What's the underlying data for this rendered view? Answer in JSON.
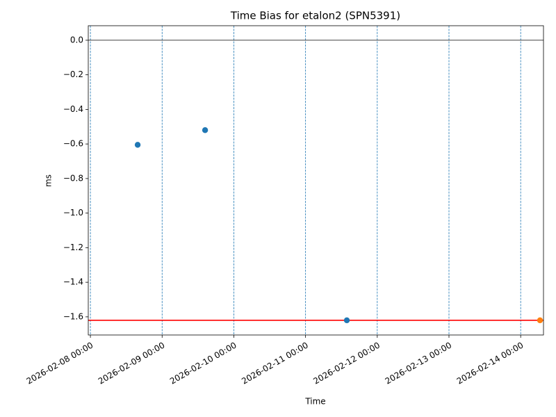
{
  "chart_data": {
    "type": "scatter",
    "title": "Time Bias for etalon2 (SPN5391)",
    "xlabel": "Time",
    "ylabel": "ms",
    "series": [
      {
        "color": "#1f77b4",
        "x": [
          "2026-02-08 15:49",
          "2026-02-09 14:23",
          "2026-02-11 13:49"
        ],
        "values": [
          -0.605,
          -0.52,
          -1.62
        ]
      },
      {
        "color": "#ff7f0e",
        "x": [
          "2026-02-14 06:28"
        ],
        "values": [
          -1.62
        ]
      }
    ],
    "hlines": [
      {
        "value": 0,
        "color": "#000000"
      },
      {
        "value": -1.62,
        "color": "#ff0000"
      }
    ],
    "xlim": [
      "2026-02-07 23:17",
      "2026-02-14 07:38"
    ],
    "xticks": [
      "2026-02-08 00:00",
      "2026-02-09 00:00",
      "2026-02-10 00:00",
      "2026-02-11 00:00",
      "2026-02-12 00:00",
      "2026-02-13 00:00",
      "2026-02-14 00:00"
    ],
    "ylim": [
      -1.705,
      0.084
    ],
    "yticks": [
      {
        "value": 0,
        "label": "0.0"
      },
      {
        "value": -0.2,
        "label": "−0.2"
      },
      {
        "value": -0.4,
        "label": "−0.4"
      },
      {
        "value": -0.6,
        "label": "−0.6"
      },
      {
        "value": -0.8,
        "label": "−0.8"
      },
      {
        "value": -1.0,
        "label": "−1.0"
      },
      {
        "value": -1.2,
        "label": "−1.2"
      },
      {
        "value": -1.4,
        "label": "−1.4"
      },
      {
        "value": -1.6,
        "label": "−1.6"
      }
    ],
    "xgrid": true,
    "grid_color": "#1f77b4"
  }
}
